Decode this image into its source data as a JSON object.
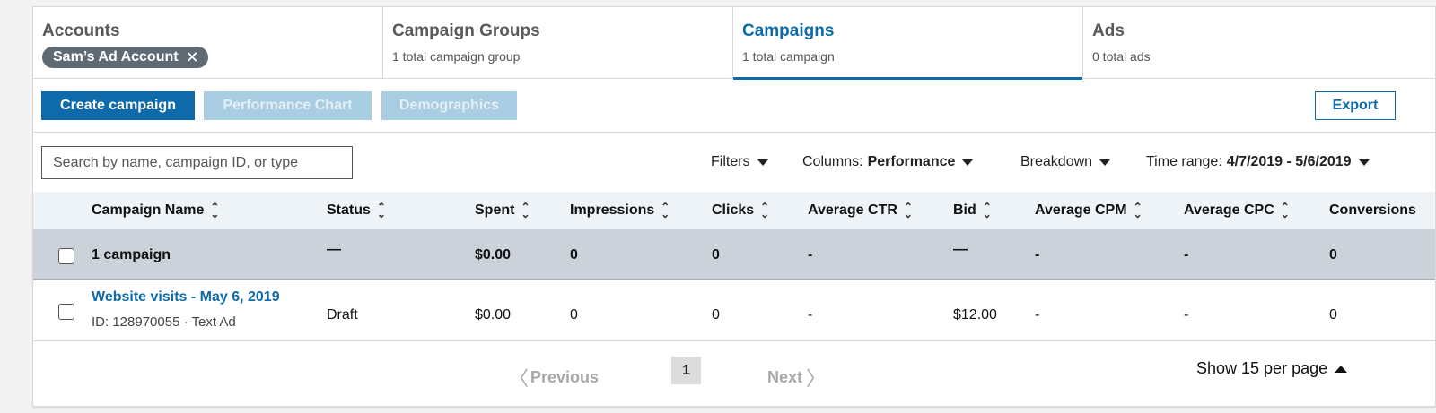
{
  "tabs": [
    {
      "title": "Accounts",
      "pill": "Sam’s Ad Account",
      "pill_close": "✕"
    },
    {
      "title": "Campaign Groups",
      "subtitle": "1 total campaign group"
    },
    {
      "title": "Campaigns",
      "subtitle": "1 total campaign",
      "active": true
    },
    {
      "title": "Ads",
      "subtitle": "0 total ads"
    }
  ],
  "toolbar": {
    "create_label": "Create campaign",
    "perf_chart_label": "Performance Chart",
    "demographics_label": "Demographics",
    "export_label": "Export"
  },
  "filters": {
    "search_placeholder": "Search by name, campaign ID, or type",
    "filters_label": "Filters",
    "columns_label": "Columns:",
    "columns_value": "Performance",
    "breakdown_label": "Breakdown",
    "time_range_label": "Time range:",
    "time_range_value": "4/7/2019 - 5/6/2019"
  },
  "table": {
    "columns": [
      "Campaign Name",
      "Status",
      "Spent",
      "Impressions",
      "Clicks",
      "Average CTR",
      "Bid",
      "Average CPM",
      "Average CPC",
      "Conversions"
    ],
    "summary": {
      "name": "1 campaign",
      "status": "—",
      "spent": "$0.00",
      "impressions": "0",
      "clicks": "0",
      "ctr": "-",
      "bid": "—",
      "cpm": "-",
      "cpc": "-",
      "conversions": "0"
    },
    "rows": [
      {
        "name": "Website visits - May 6, 2019",
        "sub": "ID: 128970055 · Text Ad",
        "status": "Draft",
        "spent": "$0.00",
        "impressions": "0",
        "clicks": "0",
        "ctr": "-",
        "bid": "$12.00",
        "cpm": "-",
        "cpc": "-",
        "conversions": "0"
      }
    ]
  },
  "pagination": {
    "previous_label": "Previous",
    "next_label": "Next",
    "current_page": "1",
    "per_page_label": "Show 15 per page"
  },
  "colors": {
    "accent": "#0e6aa8",
    "summary_row": "#cbd2d9",
    "header_row": "#eef3f7"
  }
}
